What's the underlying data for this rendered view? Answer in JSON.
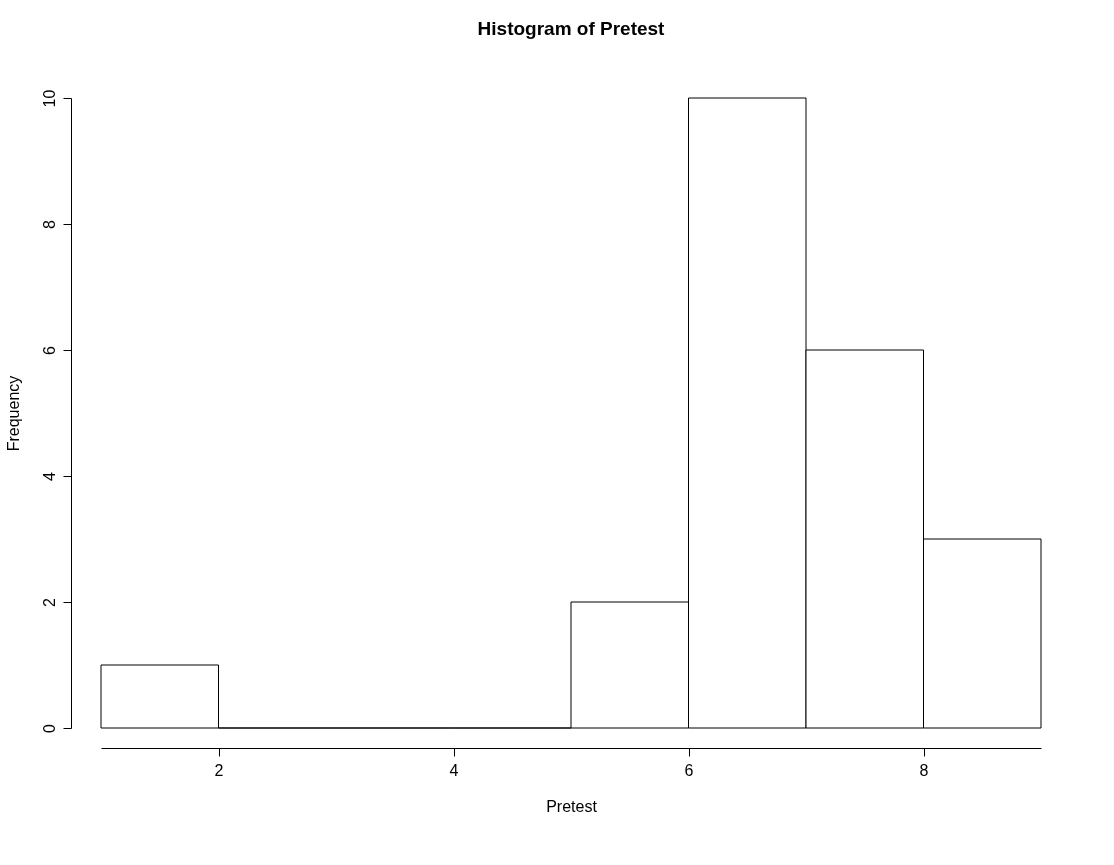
{
  "chart_data": {
    "type": "histogram",
    "title": "Histogram of Pretest",
    "xlabel": "Pretest",
    "ylabel": "Frequency",
    "bins": [
      1,
      2,
      3,
      4,
      5,
      6,
      7,
      8,
      9
    ],
    "values": [
      1,
      0,
      0,
      0,
      2,
      10,
      6,
      3
    ],
    "xlim": [
      1,
      9
    ],
    "xticks": [
      2,
      4,
      6,
      8
    ],
    "ylim": [
      0,
      10
    ],
    "yticks": [
      0,
      2,
      4,
      6,
      8,
      10
    ],
    "grid": false
  }
}
